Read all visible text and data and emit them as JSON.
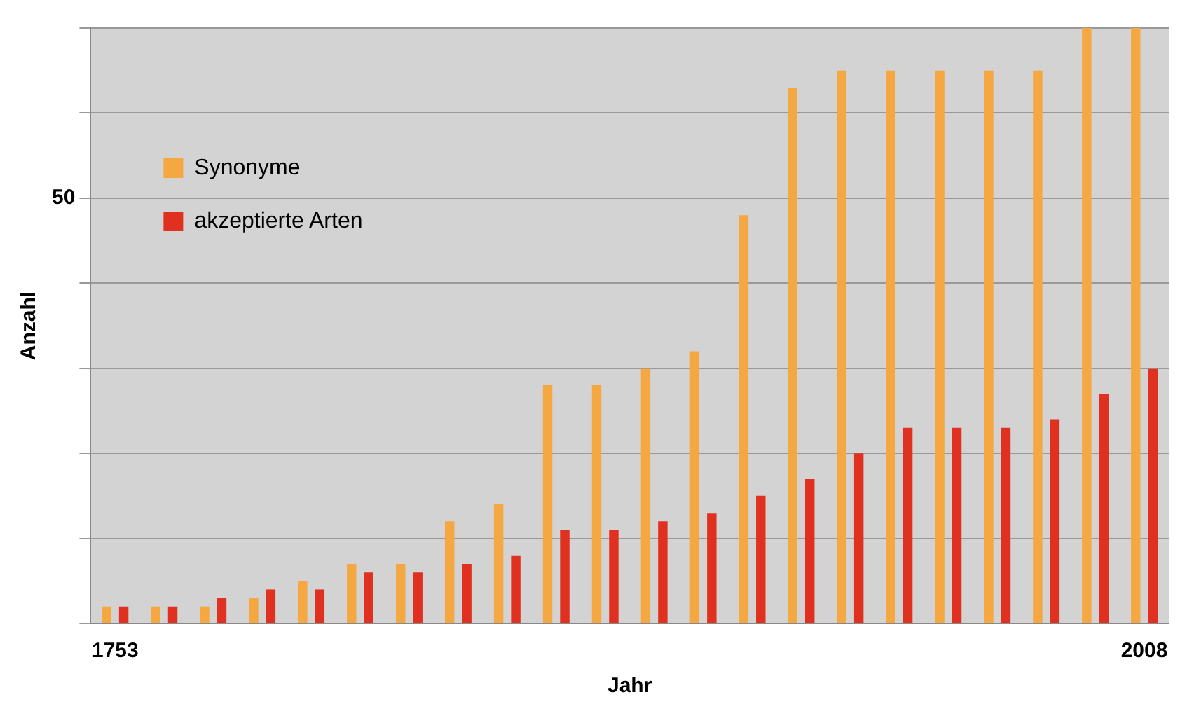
{
  "chart_data": {
    "type": "bar",
    "xlabel": "Jahr",
    "ylabel": "Anzahl",
    "categories": [
      "1753",
      null,
      null,
      null,
      null,
      null,
      null,
      null,
      null,
      null,
      null,
      null,
      null,
      null,
      null,
      null,
      null,
      null,
      null,
      null,
      null,
      "2008"
    ],
    "series": [
      {
        "name": "Synonyme",
        "color": "#f5a742",
        "values": [
          2,
          2,
          2,
          3,
          5,
          7,
          7,
          12,
          14,
          28,
          28,
          30,
          32,
          48,
          63,
          65,
          65,
          65,
          65,
          65,
          70,
          70
        ]
      },
      {
        "name": "akzeptierte Arten",
        "color": "#e03020",
        "values": [
          2,
          2,
          3,
          4,
          4,
          6,
          6,
          7,
          8,
          11,
          11,
          12,
          13,
          15,
          17,
          20,
          23,
          23,
          23,
          24,
          27,
          30
        ]
      }
    ],
    "ylim": [
      0,
      70
    ],
    "yticks": [
      {
        "value": 0,
        "label": null
      },
      {
        "value": 10,
        "label": null
      },
      {
        "value": 20,
        "label": null
      },
      {
        "value": 30,
        "label": null
      },
      {
        "value": 40,
        "label": null
      },
      50,
      {
        "value": 60,
        "label": null
      },
      {
        "value": 70,
        "label": null
      }
    ],
    "grid": "y",
    "legend": "top left"
  }
}
